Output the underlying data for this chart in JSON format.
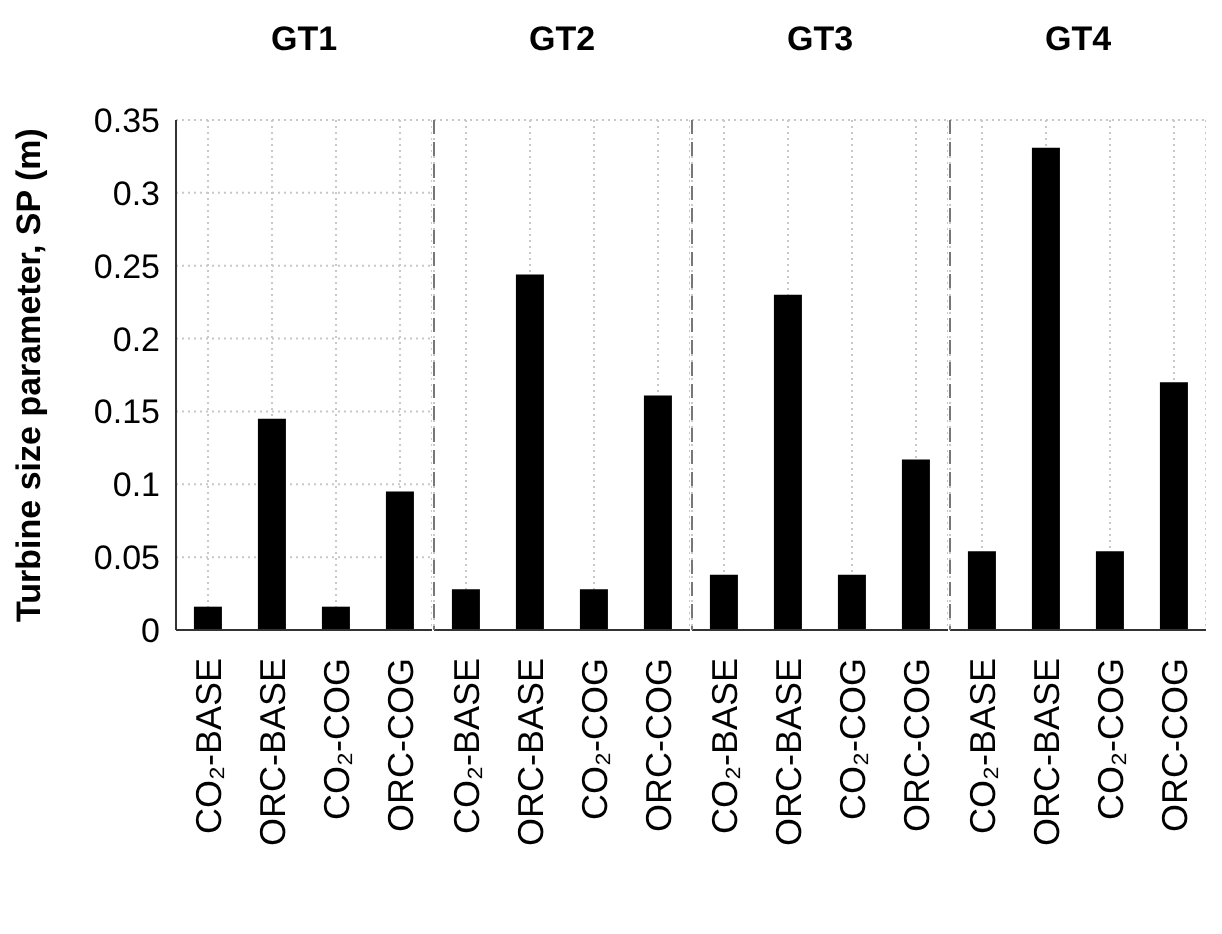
{
  "chart_data": [
    {
      "type": "bar",
      "title": "GT1",
      "ylabel": "Turbine size parameter,  SP (m)",
      "categories": [
        "CO₂-BASE",
        "ORC-BASE",
        "CO₂-COG",
        "ORC-COG"
      ],
      "values": [
        0.016,
        0.145,
        0.016,
        0.095
      ],
      "color": "#000000",
      "ylim": [
        0,
        0.35
      ],
      "yticks": [
        0,
        0.05,
        0.1,
        0.15,
        0.2,
        0.25,
        0.3,
        0.35
      ],
      "grid": true
    },
    {
      "type": "bar",
      "title": "GT2",
      "categories": [
        "CO₂-BASE",
        "ORC-BASE",
        "CO₂-COG",
        "ORC-COG"
      ],
      "values": [
        0.028,
        0.244,
        0.028,
        0.161
      ],
      "color": "#000000",
      "ylim": [
        0,
        0.35
      ],
      "yticks": [
        0,
        0.05,
        0.1,
        0.15,
        0.2,
        0.25,
        0.3,
        0.35
      ],
      "grid": true,
      "tick_labels": "x"
    },
    {
      "type": "bar",
      "title": "GT3",
      "categories": [
        "CO₂-BASE",
        "ORC-BASE",
        "CO₂-COG",
        "ORC-COG"
      ],
      "values": [
        0.038,
        0.23,
        0.038,
        0.117
      ],
      "color": "#000000",
      "ylim": [
        0,
        0.35
      ],
      "yticks": [
        0,
        0.05,
        0.1,
        0.15,
        0.2,
        0.25,
        0.3,
        0.35
      ],
      "grid": true,
      "tick_labels": "x"
    },
    {
      "type": "bar",
      "title": "GT4",
      "categories": [
        "CO₂-BASE",
        "ORC-BASE",
        "CO₂-COG",
        "ORC-COG"
      ],
      "values": [
        0.054,
        0.331,
        0.054,
        0.17
      ],
      "color": "#000000",
      "ylim": [
        0,
        0.35
      ],
      "yticks": [
        0,
        0.05,
        0.1,
        0.15,
        0.2,
        0.25,
        0.3,
        0.35
      ],
      "grid": true,
      "tick_labels": "x"
    }
  ]
}
